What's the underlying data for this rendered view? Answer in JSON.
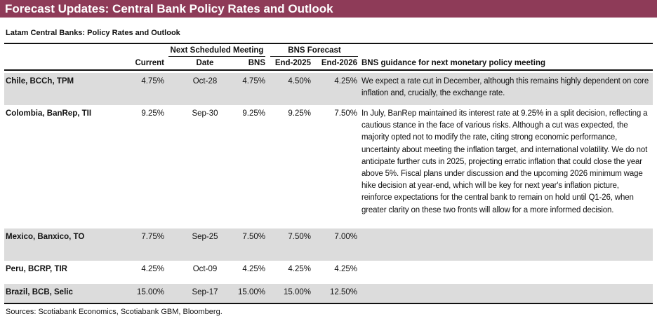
{
  "header": {
    "title": "Forecast Updates: Central Bank Policy Rates and Outlook"
  },
  "table": {
    "caption": "Latam Central Banks: Policy Rates and Outlook",
    "group_headers": {
      "meeting": "Next Scheduled Meeting",
      "forecast": "BNS Forecast"
    },
    "column_headers": {
      "current": "Current",
      "date": "Date",
      "bns": "BNS",
      "end_2025": "End-2025",
      "end_2026": "End-2026",
      "guidance": "BNS guidance for next monetary policy meeting"
    },
    "rows": [
      {
        "label": "Chile, BCCh, TPM",
        "current": "4.75%",
        "date": "Oct-28",
        "bns": "4.75%",
        "end_2025": "4.50%",
        "end_2026": "4.25%",
        "guidance": "We expect a rate cut in December, although this remains highly dependent on core inflation and, crucially, the exchange rate."
      },
      {
        "label": "Colombia, BanRep, TII",
        "current": "9.25%",
        "date": "Sep-30",
        "bns": "9.25%",
        "end_2025": "9.25%",
        "end_2026": "7.50%",
        "guidance": "In July, BanRep maintained its interest rate at 9.25% in a split decision, reflecting a cautious stance in the face of various risks. Although a cut was expected, the majority opted not to modify the rate, citing strong economic performance, uncertainty about meeting the inflation target, and international volatility. We do not anticipate further cuts in 2025, projecting erratic inflation that could close the year above 5%. Fiscal plans under discussion and the upcoming 2026 minimum wage hike decision at year-end, which will be key for next year's inflation picture, reinforce expectations for the central bank to remain on hold until Q1-26, when greater clarity on these two fronts will allow for a more informed decision."
      },
      {
        "label": "Mexico, Banxico, TO",
        "current": "7.75%",
        "date": "Sep-25",
        "bns": "7.50%",
        "end_2025": "7.50%",
        "end_2026": "7.00%"
      },
      {
        "label": "Peru, BCRP, TIR",
        "current": "4.25%",
        "date": "Oct-09",
        "bns": "4.25%",
        "end_2025": "4.25%",
        "end_2026": "4.25%"
      },
      {
        "label": "Brazil, BCB, Selic",
        "current": "15.00%",
        "date": "Sep-17",
        "bns": "15.00%",
        "end_2025": "15.00%",
        "end_2026": "12.50%"
      }
    ]
  },
  "footer": {
    "sources": "Sources: Scotiabank Economics, Scotiabank GBM, Bloomberg."
  }
}
